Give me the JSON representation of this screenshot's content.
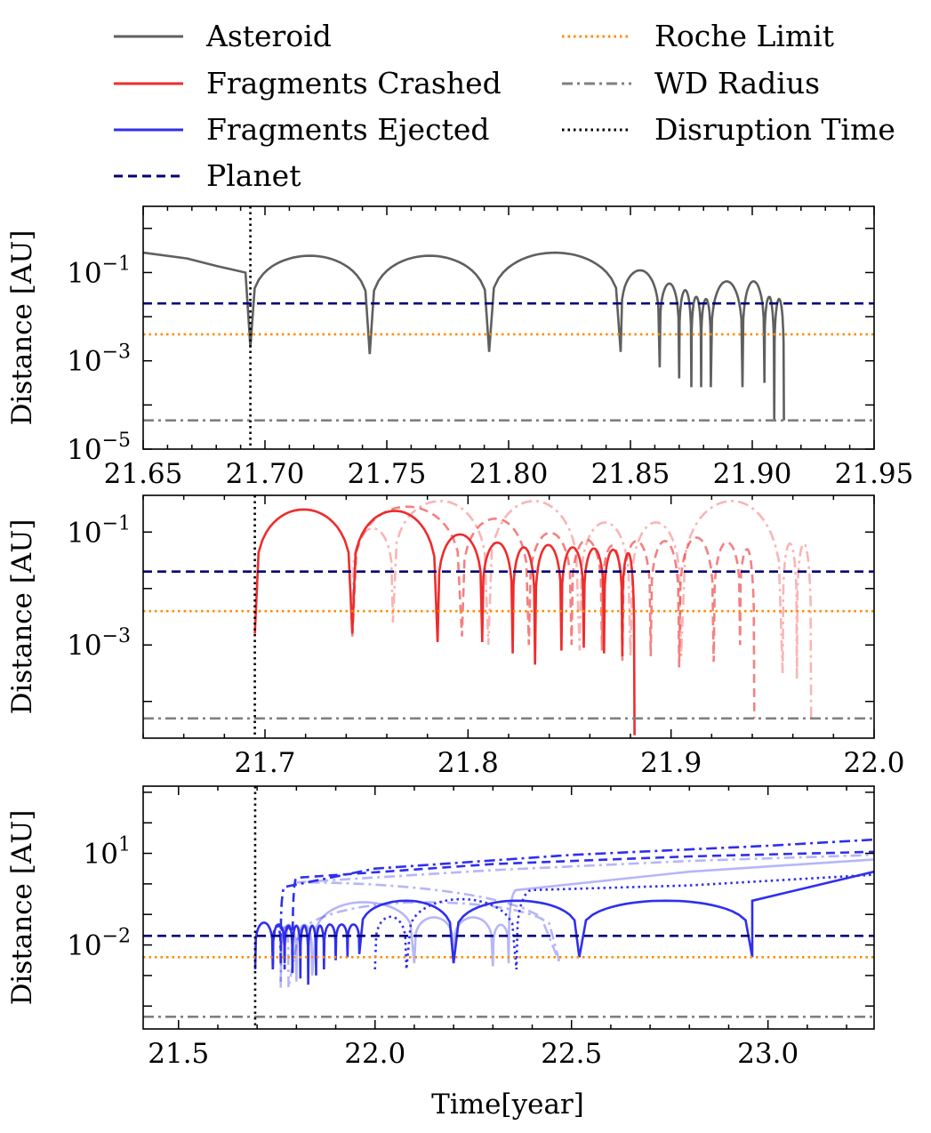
{
  "legend": {
    "items": [
      {
        "label": "Asteroid",
        "color": "#5f5f5f",
        "style": "solid"
      },
      {
        "label": "Roche Limit",
        "color": "#ff8c00",
        "style": "dotted"
      },
      {
        "label": "Fragments Crashed",
        "color": "#ee2c2c",
        "style": "solid"
      },
      {
        "label": "WD Radius",
        "color": "#808080",
        "style": "dashdot"
      },
      {
        "label": "Fragments Ejected",
        "color": "#2f2fee",
        "style": "solid"
      },
      {
        "label": "Disruption Time",
        "color": "#000000",
        "style": "dotted"
      },
      {
        "label": "Planet",
        "color": "#00007a",
        "style": "dashed"
      }
    ]
  },
  "chart_data": [
    {
      "type": "line",
      "panel": "asteroid",
      "ylabel": "Distance [AU]",
      "xlabel": "",
      "yscale": "log",
      "xlim": [
        21.65,
        21.95
      ],
      "ylim_exp": [
        -5,
        0.5
      ],
      "xticks": [
        "21.65",
        "21.70",
        "21.75",
        "21.80",
        "21.85",
        "21.90",
        "21.95"
      ],
      "xtick_values": [
        21.65,
        21.7,
        21.75,
        21.8,
        21.85,
        21.9,
        21.95
      ],
      "yticks": [
        {
          "base": "10",
          "exp": "−1",
          "value_exp": -1
        },
        {
          "base": "10",
          "exp": "−3",
          "value_exp": -3
        },
        {
          "base": "10",
          "exp": "−5",
          "value_exp": -5
        }
      ],
      "hlines": {
        "planet_exp": -1.7,
        "roche_exp": -2.4,
        "wd_exp": -4.35
      },
      "disruption_time": 21.694,
      "asteroid_pre": [
        [
          21.65,
          -0.55
        ],
        [
          21.668,
          -0.68
        ],
        [
          21.68,
          -0.85
        ],
        [
          21.692,
          -1.0
        ]
      ],
      "asteroid_dips": [
        {
          "t": 21.695,
          "min": -2.7,
          "left": 21.694,
          "right": 21.743
        },
        {
          "t": 21.743,
          "min": -2.85,
          "left": 21.743,
          "right": 21.792
        },
        {
          "t": 21.792,
          "min": -2.8,
          "left": 21.792,
          "right": 21.846
        },
        {
          "t": 21.846,
          "min": -2.8,
          "left": 21.846,
          "right": 21.862
        },
        {
          "t": 21.862,
          "min": -3.15,
          "left": 21.862,
          "right": 21.87
        },
        {
          "t": 21.87,
          "min": -3.4,
          "left": 21.87,
          "right": 21.875
        },
        {
          "t": 21.875,
          "min": -3.6,
          "left": 21.875,
          "right": 21.879
        },
        {
          "t": 21.879,
          "min": -3.6,
          "left": 21.879,
          "right": 21.883
        },
        {
          "t": 21.883,
          "min": -3.6,
          "left": 21.883,
          "right": 21.896
        },
        {
          "t": 21.896,
          "min": -3.6,
          "left": 21.896,
          "right": 21.905
        },
        {
          "t": 21.905,
          "min": -3.5,
          "left": 21.905,
          "right": 21.909
        },
        {
          "t": 21.909,
          "min": -4.35,
          "left": 21.909,
          "right": 21.913
        },
        {
          "t": 21.913,
          "min": -4.35,
          "left": 21.913,
          "right": 21.913
        }
      ],
      "asteroid_peaks_exp": [
        -0.62,
        -0.62,
        -0.55,
        -0.95,
        -1.25,
        -1.4,
        -1.55,
        -1.6,
        -1.2,
        -1.2,
        -1.55,
        -1.6,
        -1.6
      ]
    },
    {
      "type": "line",
      "panel": "crashed",
      "ylabel": "Distance [AU]",
      "xlabel": "",
      "yscale": "log",
      "xlim": [
        21.64,
        22.0
      ],
      "ylim_exp": [
        -4.65,
        -0.35
      ],
      "xticks": [
        "21.7",
        "21.8",
        "21.9",
        "22.0"
      ],
      "xtick_values": [
        21.7,
        21.8,
        21.9,
        22.0
      ],
      "yticks": [
        {
          "base": "10",
          "exp": "−1",
          "value_exp": -1
        },
        {
          "base": "10",
          "exp": "−3",
          "value_exp": -3
        }
      ],
      "hlines": {
        "planet_exp": -1.7,
        "roche_exp": -2.4,
        "wd_exp": -4.3
      },
      "disruption_time": 21.695,
      "series": [
        {
          "name": "",
          "style": "solid",
          "opacity": 1.0,
          "start": 21.695,
          "peak_exp": -0.6,
          "dips": [
            [
              21.743,
              -2.8
            ],
            [
              21.785,
              -2.95
            ],
            [
              21.807,
              -2.95
            ],
            [
              21.822,
              -3.15
            ],
            [
              21.833,
              -3.35
            ],
            [
              21.846,
              -3.1
            ],
            [
              21.857,
              -3.05
            ],
            [
              21.867,
              -3.15
            ],
            [
              21.876,
              -3.2
            ],
            [
              21.882,
              -4.6
            ]
          ]
        },
        {
          "name": "",
          "style": "dashed",
          "opacity": 0.6,
          "start": 21.743,
          "peak_exp": -0.55,
          "dips": [
            [
              21.797,
              -2.85
            ],
            [
              21.83,
              -3.0
            ],
            [
              21.851,
              -3.0
            ],
            [
              21.866,
              -3.1
            ],
            [
              21.876,
              -3.3
            ],
            [
              21.89,
              -3.2
            ],
            [
              21.904,
              -3.4
            ],
            [
              21.921,
              -3.3
            ],
            [
              21.934,
              -3.0
            ],
            [
              21.941,
              -4.3
            ]
          ]
        },
        {
          "name": "",
          "style": "dashdot",
          "opacity": 0.35,
          "start": 21.743,
          "peak_exp": -0.45,
          "dips": [
            [
              21.763,
              -2.6
            ],
            [
              21.81,
              -3.0
            ],
            [
              21.855,
              -3.1
            ],
            [
              21.88,
              -3.2
            ],
            [
              21.905,
              -3.2
            ],
            [
              21.955,
              -3.5
            ],
            [
              21.962,
              -3.6
            ],
            [
              21.969,
              -4.3
            ]
          ]
        }
      ]
    },
    {
      "type": "line",
      "panel": "ejected",
      "ylabel": "Distance [AU]",
      "xlabel": "Time[year]",
      "yscale": "log",
      "xlim": [
        21.41,
        23.27
      ],
      "ylim_exp": [
        -4.75,
        3.2
      ],
      "xticks": [
        "21.5",
        "22.0",
        "22.5",
        "23.0"
      ],
      "xtick_values": [
        21.5,
        22.0,
        22.5,
        23.0
      ],
      "yticks": [
        {
          "base": "10",
          "exp": "1",
          "value_exp": 1
        },
        {
          "base": "10",
          "exp": "−2",
          "value_exp": -2
        }
      ],
      "hlines": {
        "planet_exp": -1.7,
        "roche_exp": -2.4,
        "wd_exp": -4.35
      },
      "disruption_time": 21.695,
      "series": [
        {
          "name": "",
          "style": "solid",
          "opacity": 1.0,
          "start": 21.695,
          "peak_exp": -0.55,
          "dips": [
            [
              21.74,
              -2.8
            ],
            [
              21.77,
              -2.6
            ],
            [
              21.79,
              -2.9
            ],
            [
              21.81,
              -3.1
            ],
            [
              21.83,
              -3.3
            ],
            [
              21.85,
              -3.0
            ],
            [
              21.87,
              -2.8
            ],
            [
              21.9,
              -2.5
            ],
            [
              21.93,
              -2.4
            ],
            [
              21.96,
              -2.3
            ],
            [
              22.2,
              -2.6
            ],
            [
              22.52,
              -2.4
            ],
            [
              22.96,
              -2.4
            ]
          ],
          "escape": [
            [
              22.96,
              -0.55
            ],
            [
              23.27,
              0.4
            ]
          ]
        },
        {
          "name": "",
          "style": "dashed",
          "opacity": 1.0,
          "start": 21.74,
          "peak_exp": -0.6,
          "dips": [
            [
              21.77,
              -2.8
            ],
            [
              21.79,
              -3.0
            ]
          ],
          "escape": [
            [
              21.8,
              0.2
            ],
            [
              22.3,
              0.65
            ],
            [
              22.8,
              0.9
            ],
            [
              23.27,
              1.05
            ]
          ]
        },
        {
          "name": "",
          "style": "dashdot",
          "opacity": 1.0,
          "start": 21.74,
          "peak_exp": -0.55,
          "dips": [
            [
              21.76,
              -2.6
            ]
          ],
          "escape": [
            [
              21.77,
              -0.1
            ],
            [
              22.0,
              0.5
            ],
            [
              22.5,
              0.95
            ],
            [
              23.0,
              1.25
            ],
            [
              23.27,
              1.45
            ]
          ]
        },
        {
          "name": "",
          "style": "dotted",
          "opacity": 1.0,
          "start": 22.0,
          "peak_exp": -0.5,
          "dips": [
            [
              22.08,
              -2.8
            ],
            [
              22.36,
              -2.8
            ]
          ],
          "escape": [
            [
              22.4,
              -0.2
            ],
            [
              22.8,
              -0.05
            ],
            [
              23.27,
              0.3
            ]
          ]
        },
        {
          "name": "",
          "style": "solid",
          "opacity": 0.35,
          "start": 21.76,
          "peak_exp": -0.6,
          "dips": [
            [
              21.8,
              -3.2
            ],
            [
              21.84,
              -3.0
            ],
            [
              22.1,
              -2.6
            ],
            [
              22.2,
              -2.6
            ],
            [
              22.3,
              -2.7
            ],
            [
              22.34,
              -2.6
            ]
          ],
          "escape": [
            [
              22.36,
              -0.2
            ],
            [
              22.8,
              0.4
            ],
            [
              23.27,
              0.8
            ]
          ]
        },
        {
          "name": "",
          "style": "dashdot",
          "opacity": 0.35,
          "start": 21.76,
          "peak_exp": -0.6,
          "dips": [
            [
              21.78,
              -3.4
            ],
            [
              22.47,
              -2.6
            ]
          ],
          "escape": [
            [
              21.8,
              0.05
            ],
            [
              22.3,
              0.45
            ],
            [
              22.8,
              0.75
            ],
            [
              23.27,
              0.95
            ]
          ]
        }
      ]
    }
  ]
}
